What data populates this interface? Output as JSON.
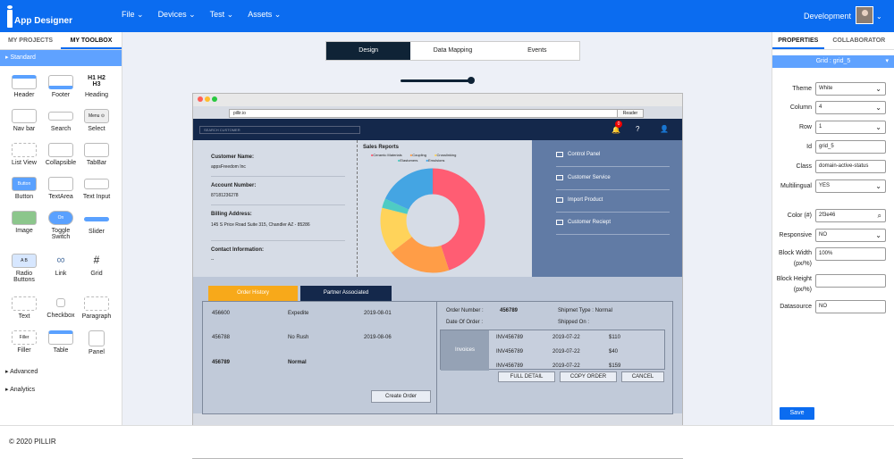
{
  "header": {
    "app_name": "App Designer",
    "menu": [
      "File",
      "Devices",
      "Test",
      "Assets"
    ],
    "environment": "Development"
  },
  "left_panel": {
    "tabs": [
      "MY PROJECTS",
      "MY TOOLBOX"
    ],
    "section": "▸ Standard",
    "tools": [
      {
        "label": "Header"
      },
      {
        "label": "Footer"
      },
      {
        "label": "Heading"
      },
      {
        "label": "Nav bar"
      },
      {
        "label": "Search"
      },
      {
        "label": "Select"
      },
      {
        "label": "List View"
      },
      {
        "label": "Collapsible"
      },
      {
        "label": "TabBar"
      },
      {
        "label": "Button"
      },
      {
        "label": "TextArea"
      },
      {
        "label": "Text Input"
      },
      {
        "label": "Image"
      },
      {
        "label": "Toggle Switch"
      },
      {
        "label": "Slider"
      },
      {
        "label": "Radio Buttons"
      },
      {
        "label": "Link"
      },
      {
        "label": "Grid"
      },
      {
        "label": "Text"
      },
      {
        "label": "Checkbox"
      },
      {
        "label": "Paragraph"
      },
      {
        "label": "Filler"
      },
      {
        "label": "Table"
      },
      {
        "label": "Panel"
      }
    ],
    "icon_texts": {
      "heading": "H1 H2 H3",
      "select": "Menu ⊙",
      "button": "Button",
      "toggle": "On",
      "radio": "A  B",
      "filler": "Filler"
    },
    "collapsed": [
      "▸ Advanced",
      "▸ Analytics"
    ]
  },
  "canvas": {
    "tabs": [
      "Design",
      "Data Mapping",
      "Events"
    ],
    "browser": {
      "address": "pillir.io",
      "reader": "Reader"
    },
    "app_preview": {
      "search_placeholder": "SEARCH CUSTOMER",
      "notification_count": "0",
      "customer": {
        "name_label": "Customer Name:",
        "name_value": "appsFreedom Inc",
        "account_label": "Account Number:",
        "account_value": "87181236278",
        "billing_label": "Billing Address:",
        "billing_value": "145 S Price Road Suite 315, Chandler AZ - 85286",
        "contact_label": "Contact Information:",
        "contact_value": "--"
      },
      "sales_report": {
        "title": "Sales Reports",
        "legend": [
          "Ceramic Materials",
          "Coupling",
          "Crosslinking",
          "Elastomers",
          "Emulsions"
        ],
        "colors": [
          "#ff5d73",
          "#ff9d47",
          "#ffd35a",
          "#4ecbc4",
          "#44a5e3"
        ]
      },
      "side_menu": [
        "Control Panel",
        "Customer Service",
        "Import Product",
        "Customer Reciept"
      ],
      "order_tabs": [
        "Order History",
        "Partner Associated"
      ],
      "orders": [
        {
          "id": "456600",
          "type": "Expedite",
          "date": "2019-08-01"
        },
        {
          "id": "456788",
          "type": "No Rush",
          "date": "2019-08-06"
        },
        {
          "id": "456789",
          "type": "Normal",
          "date": ""
        }
      ],
      "create_order": "Create Order",
      "order_detail": {
        "order_number_label": "Order Number :",
        "order_number": "456789",
        "shipment_type": "Shipmet Type : Normal",
        "date_of_order": "Date Of Order :",
        "shipped_on": "Shipped On :",
        "invoices_label": "Invoices",
        "invoices": [
          {
            "id": "INV456789",
            "date": "2019-07-22",
            "amount": "$110"
          },
          {
            "id": "INV456789",
            "date": "2019-07-22",
            "amount": "$40"
          },
          {
            "id": "INV456789",
            "date": "2019-07-22",
            "amount": "$159"
          }
        ],
        "buttons": [
          "FULL DETAIL",
          "COPY ORDER",
          "CANCEL"
        ]
      }
    }
  },
  "properties": {
    "tabs": [
      "PROPERTIES",
      "COLLABORATOR"
    ],
    "selected": "Grid : grid_5",
    "fields": [
      {
        "label": "Theme",
        "value": "White",
        "dropdown": true
      },
      {
        "label": "Column",
        "value": "4",
        "dropdown": true
      },
      {
        "label": "Row",
        "value": "1",
        "dropdown": true
      },
      {
        "label": "Id",
        "value": "grid_5"
      },
      {
        "label": "Class",
        "value": "domain-active-status"
      },
      {
        "label": "Multilingual",
        "value": "YES",
        "dropdown": true
      },
      {
        "label": "Color (#)",
        "value": "2f3e46"
      },
      {
        "label": "Responsive",
        "value": "NO",
        "dropdown": true
      },
      {
        "label": "Block Width (px/%)",
        "value": "100%"
      },
      {
        "label": "Block Height (px/%)",
        "value": ""
      },
      {
        "label": "Datasource",
        "value": "NO"
      }
    ],
    "save": "Save"
  },
  "footer": {
    "copyright": "© 2020 PILLIR"
  }
}
